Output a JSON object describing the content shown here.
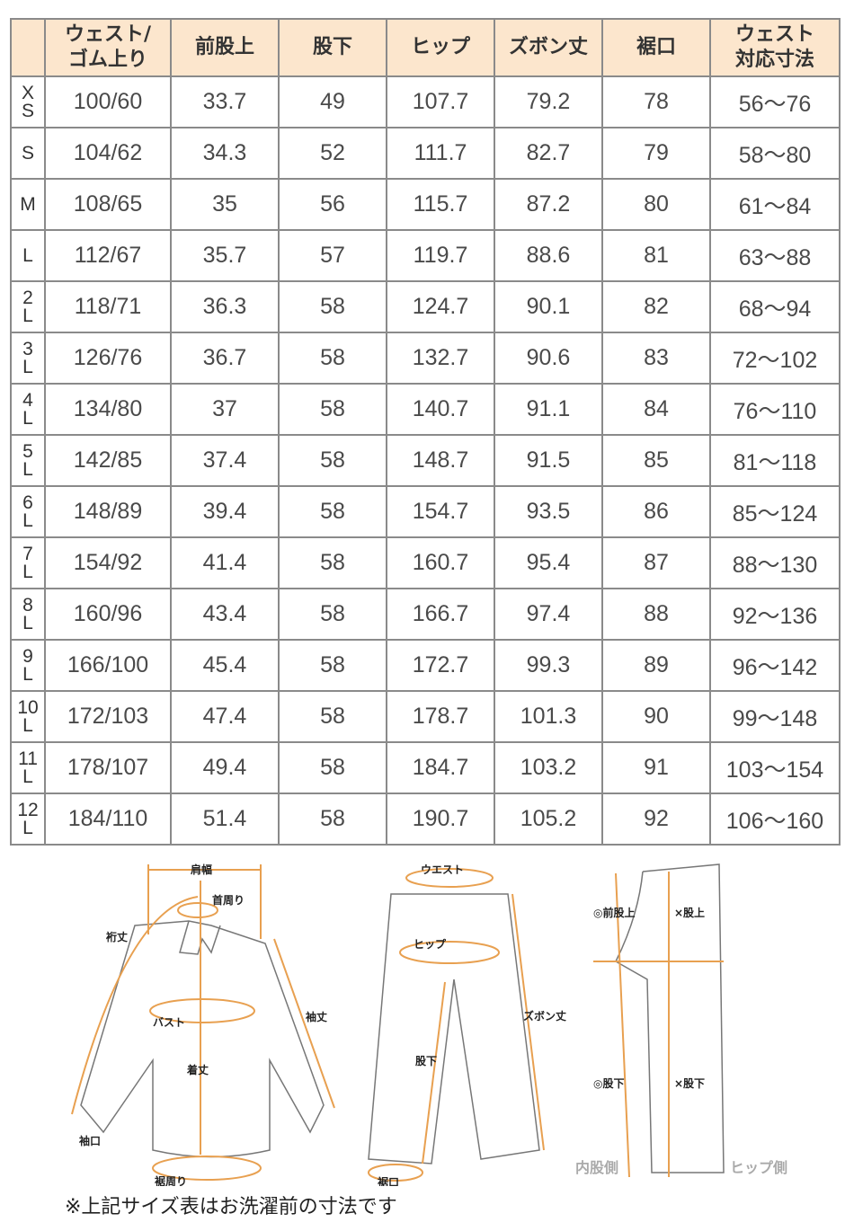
{
  "table": {
    "headers": [
      "",
      "ウェスト/\nゴム上り",
      "前股上",
      "股下",
      "ヒップ",
      "ズボン丈",
      "裾口",
      "ウェスト\n対応寸法"
    ],
    "rows": [
      [
        "X\nS",
        "100/60",
        "33.7",
        "49",
        "107.7",
        "79.2",
        "78",
        "56～76"
      ],
      [
        "S",
        "104/62",
        "34.3",
        "52",
        "111.7",
        "82.7",
        "79",
        "58～80"
      ],
      [
        "M",
        "108/65",
        "35",
        "56",
        "115.7",
        "87.2",
        "80",
        "61～84"
      ],
      [
        "L",
        "112/67",
        "35.7",
        "57",
        "119.7",
        "88.6",
        "81",
        "63～88"
      ],
      [
        "2\nL",
        "118/71",
        "36.3",
        "58",
        "124.7",
        "90.1",
        "82",
        "68～94"
      ],
      [
        "3\nL",
        "126/76",
        "36.7",
        "58",
        "132.7",
        "90.6",
        "83",
        "72～102"
      ],
      [
        "4\nL",
        "134/80",
        "37",
        "58",
        "140.7",
        "91.1",
        "84",
        "76～110"
      ],
      [
        "5\nL",
        "142/85",
        "37.4",
        "58",
        "148.7",
        "91.5",
        "85",
        "81～118"
      ],
      [
        "6\nL",
        "148/89",
        "39.4",
        "58",
        "154.7",
        "93.5",
        "86",
        "85～124"
      ],
      [
        "7\nL",
        "154/92",
        "41.4",
        "58",
        "160.7",
        "95.4",
        "87",
        "88～130"
      ],
      [
        "8\nL",
        "160/96",
        "43.4",
        "58",
        "166.7",
        "97.4",
        "88",
        "92～136"
      ],
      [
        "9\nL",
        "166/100",
        "45.4",
        "58",
        "172.7",
        "99.3",
        "89",
        "96～142"
      ],
      [
        "10\nL",
        "172/103",
        "47.4",
        "58",
        "178.7",
        "101.3",
        "90",
        "99～148"
      ],
      [
        "11\nL",
        "178/107",
        "49.4",
        "58",
        "184.7",
        "103.2",
        "91",
        "103～154"
      ],
      [
        "12\nL",
        "184/110",
        "51.4",
        "58",
        "190.7",
        "105.2",
        "92",
        "106～160"
      ]
    ]
  },
  "diagram": {
    "shirt": {
      "shoulder": "肩幅",
      "neck": "首周り",
      "sleeve_full": "裄丈",
      "bust": "バスト",
      "sleeve": "袖丈",
      "length": "着丈",
      "cuff": "袖口",
      "hem": "裾周り"
    },
    "pants": {
      "waist": "ウエスト",
      "hip": "ヒップ",
      "length": "ズボン丈",
      "inseam": "股下",
      "hem": "裾口"
    },
    "side": {
      "front_rise": "◎前股上",
      "rise": "×股上",
      "inseam_a": "◎股下",
      "inseam_b": "×股下",
      "inner": "内股側",
      "hip_side": "ヒップ側"
    },
    "accent": "#e8a050"
  },
  "note": "※上記サイズ表はお洗濯前の寸法です"
}
